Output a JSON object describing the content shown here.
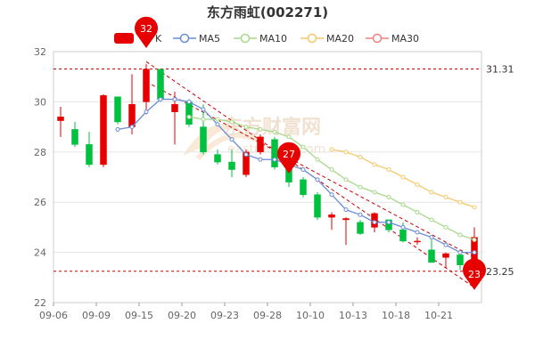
{
  "chart_data": {
    "type": "candlestick",
    "title": "东方雨虹(002271)",
    "ylim": [
      22,
      32
    ],
    "y_ticks": [
      "22",
      "24",
      "26",
      "28",
      "30",
      "32"
    ],
    "x_ticks": [
      "09-06",
      "09-09",
      "09-15",
      "09-20",
      "09-23",
      "09-28",
      "10-10",
      "10-13",
      "10-18",
      "10-21"
    ],
    "legend": [
      "K",
      "MA5",
      "MA10",
      "MA20",
      "MA30"
    ],
    "colors": {
      "up": "#e60000",
      "down": "#00c040",
      "ma5": "#6a8bd6",
      "ma10": "#a6d98a",
      "ma20": "#f5c96a",
      "ma30": "#f08080",
      "pin": "#e60000",
      "ref_line": "#cc0000",
      "trend_line": "#cc0000",
      "grid": "#e5e5e5"
    },
    "reference_lines": [
      {
        "value": 31.31,
        "label": "31.31"
      },
      {
        "value": 23.25,
        "label": "23.25"
      }
    ],
    "pins": [
      {
        "index": 6,
        "value": 32,
        "label": "32",
        "direction": "up"
      },
      {
        "index": 16,
        "value": 27,
        "label": "27",
        "direction": "up"
      },
      {
        "index": 29,
        "value": 23,
        "label": "23",
        "direction": "down"
      }
    ],
    "trend_lines": [
      {
        "from": [
          6,
          31.6
        ],
        "to": [
          29,
          22.6
        ]
      },
      {
        "from": [
          6,
          30.8
        ],
        "to": [
          29,
          23.8
        ]
      }
    ],
    "candles": [
      {
        "open": 29.25,
        "high": 29.8,
        "low": 28.6,
        "close": 29.4
      },
      {
        "open": 28.9,
        "high": 29.2,
        "low": 28.2,
        "close": 28.3
      },
      {
        "open": 28.3,
        "high": 28.8,
        "low": 27.4,
        "close": 27.5
      },
      {
        "open": 27.5,
        "high": 30.3,
        "low": 27.4,
        "close": 30.25
      },
      {
        "open": 30.2,
        "high": 30.2,
        "low": 29.1,
        "close": 29.2
      },
      {
        "open": 29.0,
        "high": 31.1,
        "low": 28.7,
        "close": 29.9
      },
      {
        "open": 30.0,
        "high": 31.5,
        "low": 29.5,
        "close": 31.3
      },
      {
        "open": 31.3,
        "high": 31.3,
        "low": 30.0,
        "close": 30.1
      },
      {
        "open": 29.6,
        "high": 30.4,
        "low": 28.3,
        "close": 29.9
      },
      {
        "open": 30.0,
        "high": 30.1,
        "low": 29.0,
        "close": 29.1
      },
      {
        "open": 29.0,
        "high": 29.9,
        "low": 27.9,
        "close": 28.0
      },
      {
        "open": 27.9,
        "high": 28.1,
        "low": 27.5,
        "close": 27.6
      },
      {
        "open": 27.6,
        "high": 28.1,
        "low": 27.0,
        "close": 27.3
      },
      {
        "open": 27.1,
        "high": 28.1,
        "low": 27.0,
        "close": 28.0
      },
      {
        "open": 28.0,
        "high": 28.7,
        "low": 27.9,
        "close": 28.6
      },
      {
        "open": 28.5,
        "high": 28.6,
        "low": 27.3,
        "close": 27.4
      },
      {
        "open": 27.7,
        "high": 27.7,
        "low": 26.6,
        "close": 26.8
      },
      {
        "open": 26.9,
        "high": 27.0,
        "low": 26.2,
        "close": 26.3
      },
      {
        "open": 26.3,
        "high": 26.4,
        "low": 25.3,
        "close": 25.4
      },
      {
        "open": 25.4,
        "high": 25.6,
        "low": 24.9,
        "close": 25.5
      },
      {
        "open": 25.3,
        "high": 25.4,
        "low": 24.3,
        "close": 25.35
      },
      {
        "open": 25.2,
        "high": 25.3,
        "low": 24.7,
        "close": 24.75
      },
      {
        "open": 25.0,
        "high": 25.6,
        "low": 24.8,
        "close": 25.55
      },
      {
        "open": 25.3,
        "high": 25.3,
        "low": 24.8,
        "close": 24.9
      },
      {
        "open": 24.9,
        "high": 25.2,
        "low": 24.4,
        "close": 24.45
      },
      {
        "open": 24.45,
        "high": 24.6,
        "low": 24.3,
        "close": 24.45
      },
      {
        "open": 24.1,
        "high": 24.5,
        "low": 23.6,
        "close": 23.6
      },
      {
        "open": 23.8,
        "high": 24.0,
        "low": 23.4,
        "close": 23.95
      },
      {
        "open": 23.9,
        "high": 24.1,
        "low": 23.3,
        "close": 23.5
      },
      {
        "open": 23.3,
        "high": 25.0,
        "low": 23.25,
        "close": 24.6
      }
    ],
    "ma5": [
      null,
      null,
      null,
      null,
      28.9,
      29.0,
      29.6,
      30.1,
      30.1,
      30.0,
      29.7,
      29.1,
      28.5,
      27.9,
      27.7,
      27.7,
      27.5,
      27.3,
      26.9,
      26.3,
      25.7,
      25.5,
      25.2,
      25.2,
      25.0,
      24.8,
      24.6,
      24.3,
      24.0,
      24.0
    ],
    "ma10": [
      null,
      null,
      null,
      null,
      null,
      null,
      null,
      null,
      null,
      29.4,
      29.3,
      29.3,
      29.2,
      29.0,
      28.9,
      28.8,
      28.6,
      28.2,
      27.7,
      27.3,
      26.9,
      26.6,
      26.4,
      26.2,
      25.9,
      25.6,
      25.3,
      25.0,
      24.7,
      24.5
    ],
    "ma20": [
      null,
      null,
      null,
      null,
      null,
      null,
      null,
      null,
      null,
      null,
      null,
      null,
      null,
      null,
      null,
      null,
      null,
      null,
      null,
      28.1,
      28.0,
      27.8,
      27.5,
      27.3,
      27.0,
      26.7,
      26.4,
      26.2,
      26.0,
      25.8
    ],
    "ma30": []
  }
}
